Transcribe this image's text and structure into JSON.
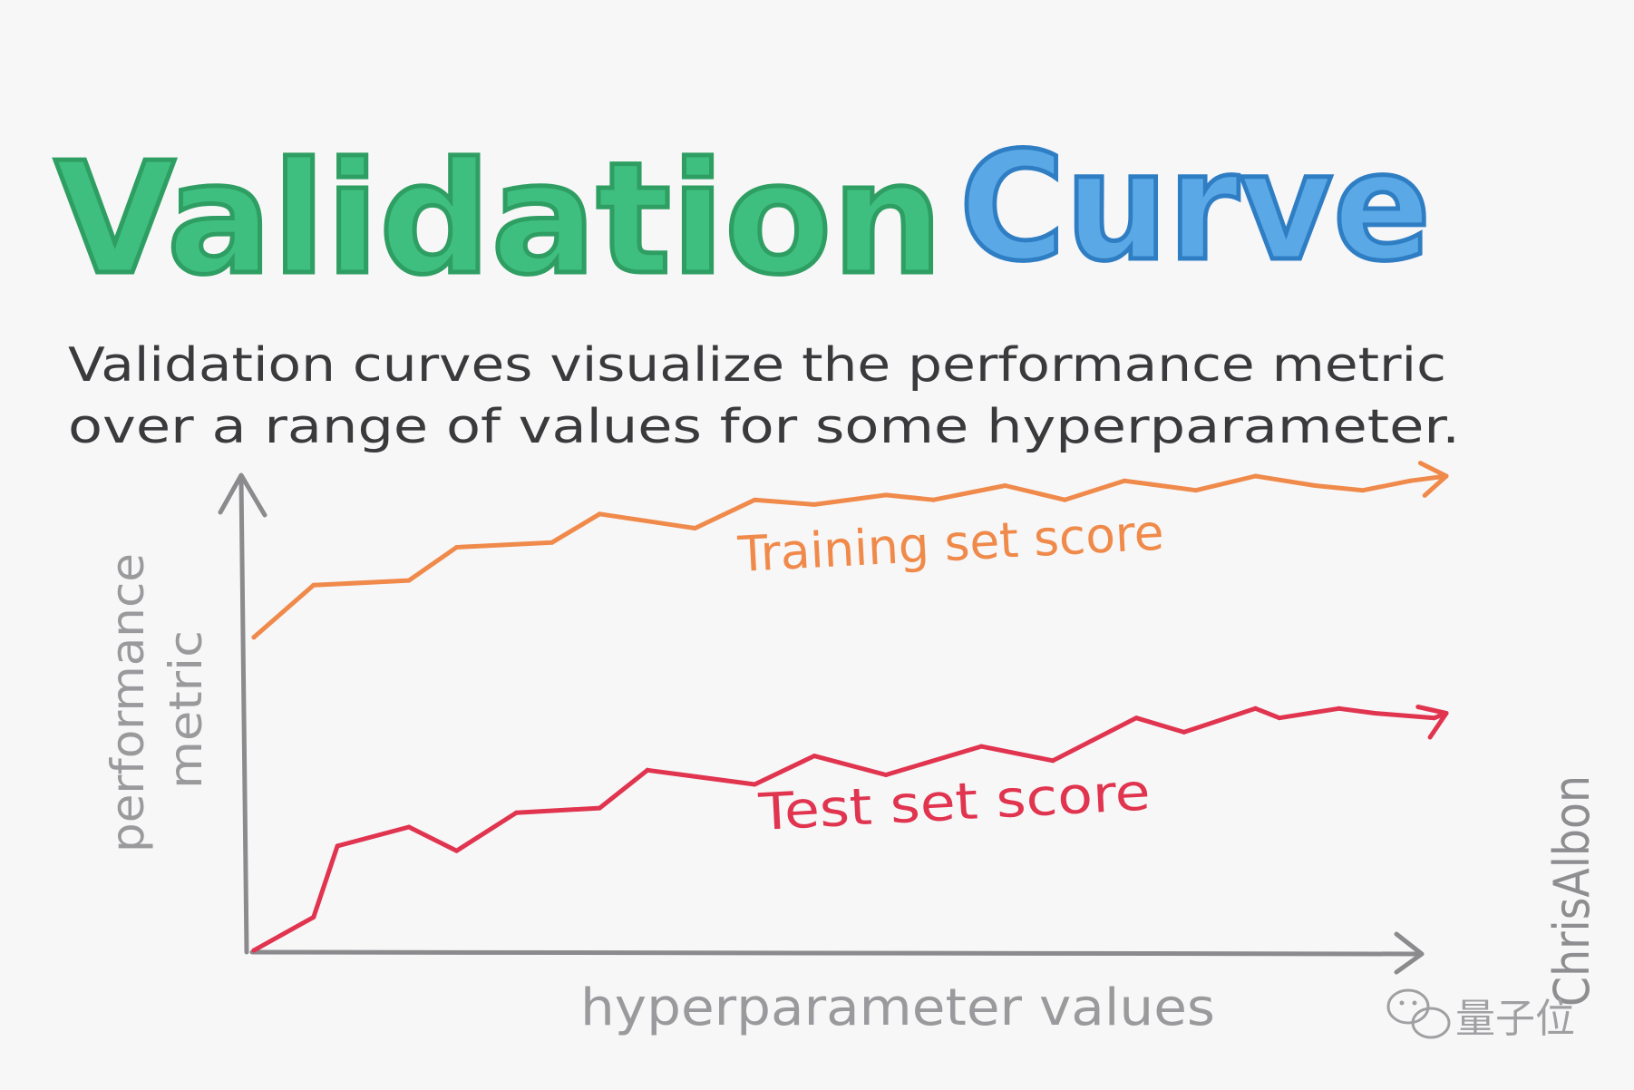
{
  "title": {
    "word1": "Validation",
    "word2": "Curve",
    "word1_color": "#2e9e62",
    "word1_fill": "#3fbf7f",
    "word2_color": "#2f7ec4",
    "word2_fill": "#5aa9e6"
  },
  "description": {
    "line1": "Validation curves visualize the performance metric",
    "line2": "over a range of values for some hyperparameter."
  },
  "chart_data": {
    "type": "line",
    "title": "",
    "xlabel": "hyperparameter values",
    "ylabel_line1": "performance",
    "ylabel_line2": "metric",
    "xlim": [
      0,
      1
    ],
    "ylim": [
      0,
      1
    ],
    "grid": false,
    "legend": "inline labels",
    "series": [
      {
        "name": "Training set score",
        "color": "#f08a4b",
        "x": [
          0.0,
          0.05,
          0.13,
          0.17,
          0.25,
          0.29,
          0.37,
          0.42,
          0.47,
          0.53,
          0.57,
          0.63,
          0.68,
          0.73,
          0.79,
          0.84,
          0.89,
          0.93,
          0.97,
          1.0
        ],
        "y": [
          0.66,
          0.77,
          0.78,
          0.85,
          0.86,
          0.92,
          0.89,
          0.95,
          0.94,
          0.96,
          0.95,
          0.98,
          0.95,
          0.99,
          0.97,
          1.0,
          0.98,
          0.97,
          0.99,
          1.0
        ]
      },
      {
        "name": "Test set score",
        "color": "#e0344f",
        "x": [
          0.0,
          0.05,
          0.07,
          0.13,
          0.17,
          0.22,
          0.29,
          0.33,
          0.42,
          0.47,
          0.53,
          0.61,
          0.67,
          0.74,
          0.78,
          0.84,
          0.86,
          0.91,
          0.94,
          0.99,
          1.0
        ],
        "y": [
          0.0,
          0.07,
          0.22,
          0.26,
          0.21,
          0.29,
          0.3,
          0.38,
          0.35,
          0.41,
          0.37,
          0.43,
          0.4,
          0.49,
          0.46,
          0.51,
          0.49,
          0.51,
          0.5,
          0.49,
          0.5
        ]
      }
    ]
  },
  "signature": "ChrisAlbon",
  "watermark": "量子位"
}
